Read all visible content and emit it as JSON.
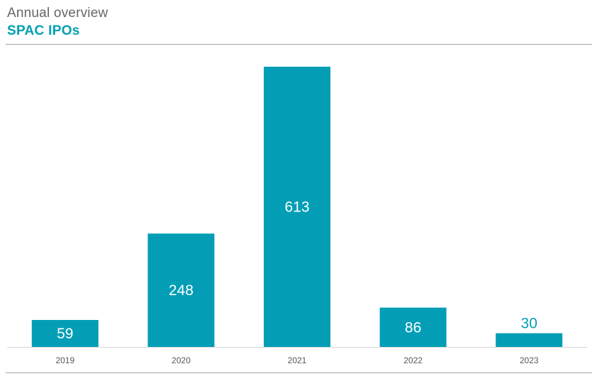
{
  "header": {
    "kicker": "Annual overview",
    "title": "SPAC IPOs"
  },
  "colors": {
    "bar": "#039eb6",
    "label_inside": "#ffffff",
    "label_outside": "#039eb6",
    "axis_line": "#d9d9d9",
    "tick_label": "#595959",
    "rule": "#a6a6a6"
  },
  "chart_data": {
    "type": "bar",
    "title": "SPAC IPOs",
    "xlabel": "",
    "ylabel": "",
    "categories": [
      "2019",
      "2020",
      "2021",
      "2022",
      "2023"
    ],
    "values": [
      59,
      248,
      613,
      86,
      30
    ],
    "ylim": [
      0,
      613
    ],
    "grid": false,
    "legend": "none",
    "data_labels": true
  }
}
